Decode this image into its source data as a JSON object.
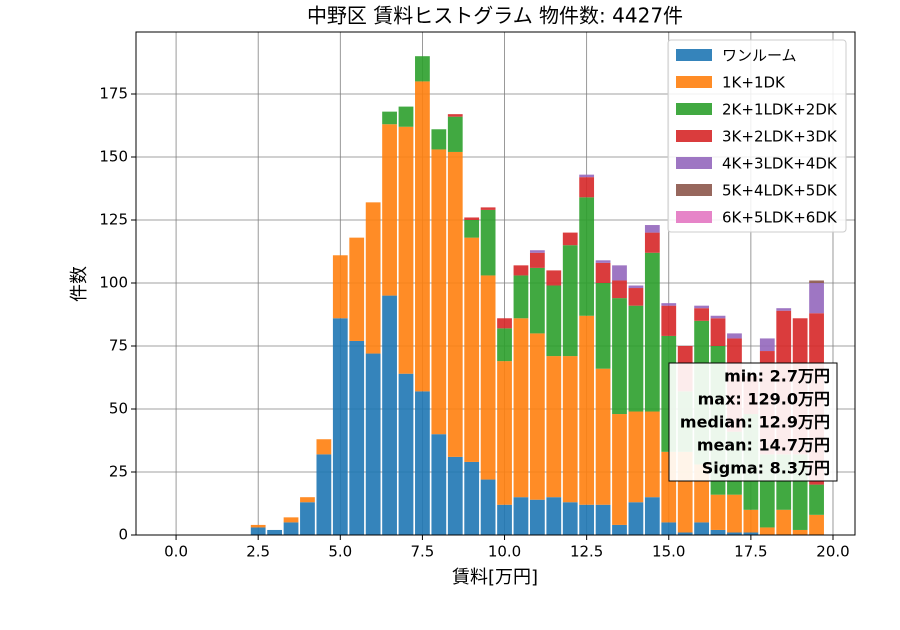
{
  "chart_data": {
    "type": "histogram",
    "title": "中野区 賃料ヒストグラム  物件数: 4427件",
    "x_label": "賃料[万円]",
    "y_label": "件数",
    "bins": [
      2.25,
      2.75,
      3.25,
      3.75,
      4.25,
      4.75,
      5.25,
      5.75,
      6.25,
      6.75,
      7.25,
      7.75,
      8.25,
      8.75,
      9.25,
      9.75,
      10.25,
      10.75,
      11.25,
      11.75,
      12.25,
      12.75,
      13.25,
      13.75,
      14.25,
      14.75,
      15.25,
      15.75,
      16.25,
      16.75,
      17.25,
      17.75,
      18.25,
      18.75,
      19.25,
      19.75
    ],
    "stacked": true,
    "grid": true,
    "legend": "upper right",
    "series": [
      {
        "name": "ワンルーム",
        "color": "#1f77b4",
        "values": [
          3,
          2,
          5,
          13,
          32,
          86,
          77,
          72,
          95,
          64,
          57,
          40,
          31,
          29,
          22,
          12,
          15,
          14,
          15,
          13,
          12,
          12,
          4,
          13,
          15,
          5,
          1,
          5,
          2,
          1,
          1,
          0,
          0,
          0,
          0
        ]
      },
      {
        "name": "1K+1DK",
        "color": "#ff7f0e",
        "values": [
          1,
          0,
          2,
          2,
          6,
          25,
          41,
          60,
          68,
          98,
          123,
          113,
          121,
          89,
          81,
          57,
          71,
          66,
          56,
          58,
          75,
          54,
          44,
          36,
          34,
          28,
          32,
          23,
          14,
          15,
          9,
          3,
          10,
          2,
          8
        ]
      },
      {
        "name": "2K+1LDK+2DK",
        "color": "#2ca02c",
        "values": [
          0,
          0,
          0,
          0,
          0,
          0,
          0,
          0,
          5,
          8,
          10,
          8,
          14,
          7,
          26,
          13,
          17,
          26,
          28,
          44,
          47,
          34,
          46,
          42,
          63,
          46,
          24,
          57,
          59,
          25,
          38,
          29,
          22,
          30,
          12
        ]
      },
      {
        "name": "3K+2LDK+3DK",
        "color": "#d62728",
        "values": [
          0,
          0,
          0,
          0,
          0,
          0,
          0,
          0,
          0,
          0,
          0,
          0,
          1,
          1,
          1,
          4,
          4,
          6,
          6,
          5,
          8,
          8,
          7,
          7,
          8,
          12,
          18,
          5,
          11,
          37,
          15,
          41,
          57,
          54,
          68
        ]
      },
      {
        "name": "4K+3LDK+4DK",
        "color": "#9467bd",
        "values": [
          0,
          0,
          0,
          0,
          0,
          0,
          0,
          0,
          0,
          0,
          0,
          0,
          0,
          0,
          0,
          0,
          0,
          1,
          0,
          0,
          1,
          1,
          6,
          1,
          3,
          1,
          0,
          1,
          1,
          2,
          0,
          5,
          1,
          0,
          12
        ]
      },
      {
        "name": "5K+4LDK+5DK",
        "color": "#8c564b",
        "values": [
          0,
          0,
          0,
          0,
          0,
          0,
          0,
          0,
          0,
          0,
          0,
          0,
          0,
          0,
          0,
          0,
          0,
          0,
          0,
          0,
          0,
          0,
          0,
          0,
          0,
          0,
          0,
          0,
          0,
          0,
          0,
          0,
          0,
          0,
          1
        ]
      },
      {
        "name": "6K+5LDK+6DK",
        "color": "#e377c2",
        "values": [
          0,
          0,
          0,
          0,
          0,
          0,
          0,
          0,
          0,
          0,
          0,
          0,
          0,
          0,
          0,
          0,
          0,
          0,
          0,
          0,
          0,
          0,
          0,
          0,
          0,
          0,
          0,
          0,
          0,
          0,
          0,
          0,
          0,
          0,
          0
        ]
      }
    ],
    "xlim": [
      -1.22,
      20.67
    ],
    "ylim": [
      0,
      199.6
    ],
    "xticks": [
      {
        "value": 0,
        "label": "0.0"
      },
      2.5,
      {
        "value": 5,
        "label": "5.0"
      },
      7.5,
      {
        "value": 10,
        "label": "10.0"
      },
      12.5,
      {
        "value": 15,
        "label": "15.0"
      },
      17.5,
      {
        "value": 20,
        "label": "20.0"
      }
    ],
    "yticks": [
      0,
      25,
      50,
      75,
      100,
      125,
      150,
      175
    ],
    "annotation": [
      "min: 2.7万円",
      "max: 129.0万円",
      "median: 12.9万円",
      "mean: 14.7万円",
      "Sigma: 8.3万円"
    ]
  }
}
